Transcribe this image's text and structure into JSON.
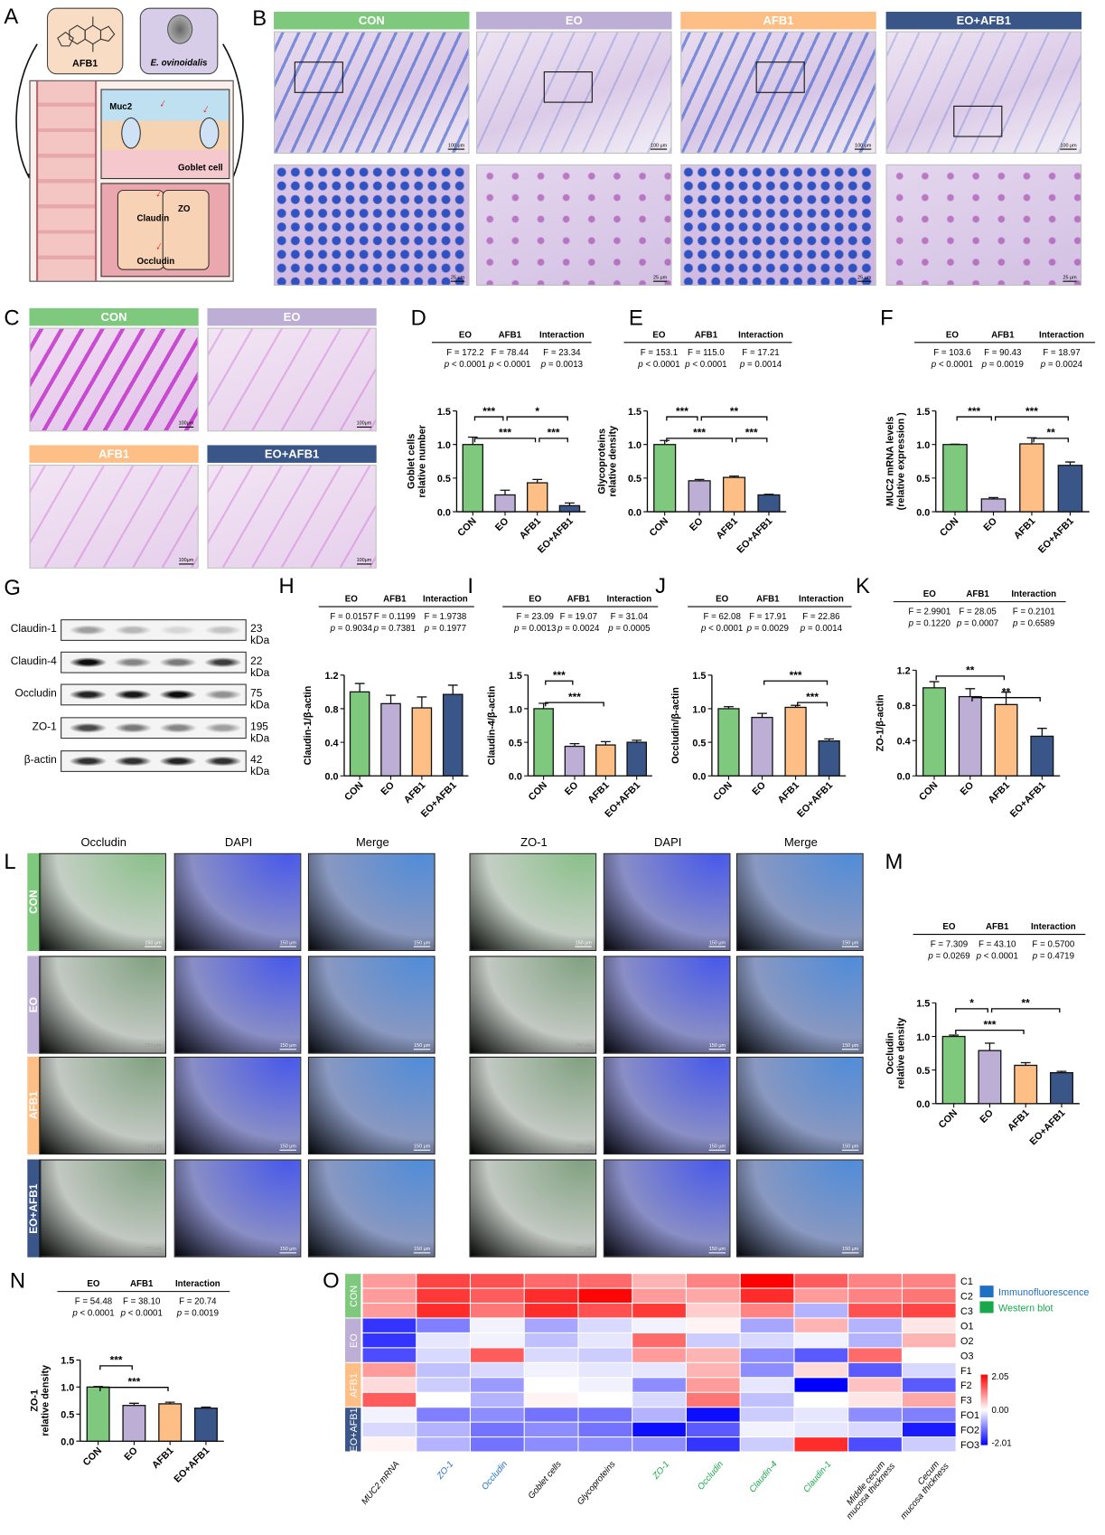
{
  "groups": [
    "CON",
    "EO",
    "AFB1",
    "EO+AFB1"
  ],
  "group_colors": {
    "CON": "#7fc97f",
    "EO": "#bcaed4",
    "AFB1": "#fdbf85",
    "EO+AFB1": "#3a5689"
  },
  "panel_letters": [
    "A",
    "B",
    "C",
    "D",
    "E",
    "F",
    "G",
    "H",
    "I",
    "J",
    "K",
    "L",
    "M",
    "N",
    "O"
  ],
  "panel_a": {
    "agent1": "AFB1",
    "agent2": "E. ovinoidalis",
    "muc2": "Muc2",
    "goblet": "Goblet cell",
    "zo": "ZO",
    "claudin": "Claudin",
    "occludin": "Occludin",
    "arrow_color": "#e8231f"
  },
  "panel_b": {
    "scale_top": "100 μm",
    "scale_bottom": "25 μm"
  },
  "panel_c": {
    "scale": "100μm"
  },
  "panel_g": {
    "proteins": [
      {
        "name": "Claudin-1",
        "kda": "23 kDa"
      },
      {
        "name": "Claudin-4",
        "kda": "22 kDa"
      },
      {
        "name": "Occludin",
        "kda": "75 kDa"
      },
      {
        "name": "ZO-1",
        "kda": "195 kDa"
      },
      {
        "name": "β-actin",
        "kda": "42 kDa"
      }
    ]
  },
  "panel_l": {
    "left_columns": [
      "Occludin",
      "DAPI",
      "Merge"
    ],
    "right_columns": [
      "ZO-1",
      "DAPI",
      "Merge"
    ],
    "scale": "150 μm"
  },
  "chart_data": [
    {
      "id": "D",
      "type": "bar",
      "ylabel": "Goblet cells\nrelative number",
      "categories": [
        "CON",
        "EO",
        "AFB1",
        "EO+AFB1"
      ],
      "values": [
        1.0,
        0.25,
        0.43,
        0.09
      ],
      "errors": [
        0.11,
        0.07,
        0.05,
        0.04
      ],
      "ylim": [
        0,
        1.5
      ],
      "yticks": [
        "0.0",
        "0.5",
        "1.0",
        "1.5"
      ],
      "stats": {
        "headers": [
          "EO",
          "AFB1",
          "Interaction"
        ],
        "F": [
          "F = 172.2",
          "F = 78.44",
          "F = 23.34"
        ],
        "p": [
          "p < 0.0001",
          "p < 0.0001",
          "p = 0.0013"
        ]
      },
      "significance": [
        [
          0,
          1,
          "***"
        ],
        [
          1,
          3,
          "*"
        ],
        [
          0,
          2,
          "***"
        ],
        [
          2,
          3,
          "***"
        ]
      ]
    },
    {
      "id": "E",
      "type": "bar",
      "ylabel": "Glycoproteins\nrelative density",
      "categories": [
        "CON",
        "EO",
        "AFB1",
        "EO+AFB1"
      ],
      "values": [
        1.0,
        0.46,
        0.51,
        0.25
      ],
      "errors": [
        0.06,
        0.02,
        0.02,
        0.01
      ],
      "ylim": [
        0,
        1.5
      ],
      "yticks": [
        "0.0",
        "0.5",
        "1.0",
        "1.5"
      ],
      "stats": {
        "headers": [
          "EO",
          "AFB1",
          "Interaction"
        ],
        "F": [
          "F = 153.1",
          "F = 115.0",
          "F = 17.21"
        ],
        "p": [
          "p < 0.0001",
          "p < 0.0001",
          "p = 0.0014"
        ]
      },
      "significance": [
        [
          0,
          1,
          "***"
        ],
        [
          1,
          3,
          "**"
        ],
        [
          0,
          2,
          "***"
        ],
        [
          2,
          3,
          "***"
        ]
      ]
    },
    {
      "id": "F",
      "type": "bar",
      "ylabel": "MUC2 mRNA  levels\n(relative expression )",
      "categories": [
        "CON",
        "EO",
        "AFB1",
        "EO+AFB1"
      ],
      "values": [
        1.0,
        0.19,
        1.01,
        0.69
      ],
      "errors": [
        0.005,
        0.02,
        0.09,
        0.05
      ],
      "ylim": [
        0,
        1.5
      ],
      "yticks": [
        "0.0",
        "0.5",
        "1.0",
        "1.5"
      ],
      "stats": {
        "headers": [
          "EO",
          "AFB1",
          "Interaction"
        ],
        "F": [
          "F = 103.6",
          "F = 90.43",
          "F = 18.97"
        ],
        "p": [
          "p < 0.0001",
          "p = 0.0019",
          "p = 0.0024"
        ]
      },
      "significance": [
        [
          0,
          1,
          "***"
        ],
        [
          1,
          3,
          "***"
        ],
        [
          2,
          3,
          "**"
        ]
      ]
    },
    {
      "id": "H",
      "type": "bar",
      "ylabel": "Claudin-1/β-actin",
      "categories": [
        "CON",
        "EO",
        "AFB1",
        "EO+AFB1"
      ],
      "values": [
        1.0,
        0.86,
        0.81,
        0.97
      ],
      "errors": [
        0.1,
        0.1,
        0.13,
        0.11
      ],
      "ylim": [
        0,
        1.2
      ],
      "yticks": [
        "0.0",
        "0.4",
        "0.8",
        "1.2"
      ],
      "stats": {
        "headers": [
          "EO",
          "AFB1",
          "Interaction"
        ],
        "F": [
          "F = 0.0157",
          "F = 0.1199",
          "F = 1.9738"
        ],
        "p": [
          "p = 0.9034",
          "p = 0.7381",
          "p = 0.1977"
        ]
      },
      "significance": []
    },
    {
      "id": "I",
      "type": "bar",
      "ylabel": "Claudin-4/β-actin",
      "categories": [
        "CON",
        "EO",
        "AFB1",
        "EO+AFB1"
      ],
      "values": [
        1.0,
        0.44,
        0.46,
        0.5
      ],
      "errors": [
        0.08,
        0.04,
        0.05,
        0.03
      ],
      "ylim": [
        0,
        1.5
      ],
      "yticks": [
        "0.0",
        "0.5",
        "1.0",
        "1.5"
      ],
      "stats": {
        "headers": [
          "EO",
          "AFB1",
          "Interaction"
        ],
        "F": [
          "F = 23.09",
          "F = 19.07",
          "F = 31.04"
        ],
        "p": [
          "p = 0.0013",
          "p = 0.0024",
          "p = 0.0005"
        ]
      },
      "significance": [
        [
          0,
          1,
          "***"
        ],
        [
          0,
          2,
          "***"
        ]
      ]
    },
    {
      "id": "J",
      "type": "bar",
      "ylabel": "Occludin/β-actin",
      "categories": [
        "CON",
        "EO",
        "AFB1",
        "EO+AFB1"
      ],
      "values": [
        1.0,
        0.87,
        1.02,
        0.52
      ],
      "errors": [
        0.03,
        0.06,
        0.03,
        0.03
      ],
      "ylim": [
        0,
        1.5
      ],
      "yticks": [
        "0.0",
        "0.5",
        "1.0",
        "1.5"
      ],
      "stats": {
        "headers": [
          "EO",
          "AFB1",
          "Interaction"
        ],
        "F": [
          "F = 62.08",
          "F = 17.91",
          "F = 22.86"
        ],
        "p": [
          "p < 0.0001",
          "p = 0.0029",
          "p = 0.0014"
        ]
      },
      "significance": [
        [
          1,
          3,
          "***"
        ],
        [
          2,
          3,
          "***"
        ]
      ]
    },
    {
      "id": "K",
      "type": "bar",
      "ylabel": "ZO-1/β-actin",
      "categories": [
        "CON",
        "EO",
        "AFB1",
        "EO+AFB1"
      ],
      "values": [
        1.0,
        0.9,
        0.81,
        0.45
      ],
      "errors": [
        0.07,
        0.09,
        0.14,
        0.09
      ],
      "ylim": [
        0,
        1.2
      ],
      "yticks": [
        "0.0",
        "0.4",
        "0.8",
        "1.2"
      ],
      "stats": {
        "headers": [
          "EO",
          "AFB1",
          "Interaction"
        ],
        "F": [
          "F = 2.9901",
          "F = 28.05",
          "F = 0.2101"
        ],
        "p": [
          "p = 0.1220",
          "p = 0.0007",
          "p = 0.6589"
        ]
      },
      "significance": [
        [
          0,
          2,
          "**"
        ],
        [
          1,
          3,
          "**"
        ]
      ]
    },
    {
      "id": "M",
      "type": "bar",
      "ylabel": "Occludin\nrelative density",
      "categories": [
        "CON",
        "EO",
        "AFB1",
        "EO+AFB1"
      ],
      "values": [
        1.0,
        0.79,
        0.57,
        0.46
      ],
      "errors": [
        0.02,
        0.11,
        0.04,
        0.02
      ],
      "ylim": [
        0,
        1.5
      ],
      "yticks": [
        "0.0",
        "0.5",
        "1.0",
        "1.5"
      ],
      "stats": {
        "headers": [
          "EO",
          "AFB1",
          "Interaction"
        ],
        "F": [
          "F = 7.309",
          "F = 43.10",
          "F = 0.5700"
        ],
        "p": [
          "p = 0.0269",
          "p < 0.0001",
          "p = 0.4719"
        ]
      },
      "significance": [
        [
          0,
          1,
          "*"
        ],
        [
          1,
          3,
          "**"
        ],
        [
          0,
          2,
          "***"
        ]
      ]
    },
    {
      "id": "N",
      "type": "bar",
      "ylabel": "ZO-1\nrelative density",
      "categories": [
        "CON",
        "EO",
        "AFB1",
        "EO+AFB1"
      ],
      "values": [
        1.0,
        0.66,
        0.69,
        0.61
      ],
      "errors": [
        0.01,
        0.04,
        0.03,
        0.02
      ],
      "ylim": [
        0,
        1.5
      ],
      "yticks": [
        "0.0",
        "0.5",
        "1.0",
        "1.5"
      ],
      "stats": {
        "headers": [
          "EO",
          "AFB1",
          "Interaction"
        ],
        "F": [
          "F = 54.48",
          "F = 38.10",
          "F = 20.74"
        ],
        "p": [
          "p < 0.0001",
          "p < 0.0001",
          "p = 0.0019"
        ]
      },
      "significance": [
        [
          0,
          1,
          "***"
        ],
        [
          0,
          2,
          "***"
        ]
      ]
    },
    {
      "id": "O",
      "type": "heatmap",
      "row_groups": [
        {
          "name": "CON",
          "rows": [
            "C1",
            "C2",
            "C3"
          ]
        },
        {
          "name": "EO",
          "rows": [
            "O1",
            "O2",
            "O3"
          ]
        },
        {
          "name": "AFB1",
          "rows": [
            "F1",
            "F2",
            "F3"
          ]
        },
        {
          "name": "EO+AFB1",
          "rows": [
            "FO1",
            "FO2",
            "FO3"
          ]
        }
      ],
      "columns": [
        {
          "label": "MUC2 mRNA",
          "source": "none"
        },
        {
          "label": "ZO-1",
          "source": "Immunofluorescence"
        },
        {
          "label": "Occludin",
          "source": "Immunofluorescence"
        },
        {
          "label": "Goblet cells",
          "source": "none"
        },
        {
          "label": "Glycoproteins",
          "source": "none"
        },
        {
          "label": "ZO-1",
          "source": "Western blot"
        },
        {
          "label": "Occludin",
          "source": "Western blot"
        },
        {
          "label": "Claudin-4",
          "source": "Western blot"
        },
        {
          "label": "Claudin-1",
          "source": "Western blot"
        },
        {
          "label": "Middle cecum\nmucosa thickness",
          "source": "none"
        },
        {
          "label": "Cecum\nmucosa thickness",
          "source": "none"
        }
      ],
      "values": [
        [
          0.8,
          1.5,
          1.4,
          1.2,
          1.2,
          0.6,
          1.0,
          2.05,
          1.3,
          1.0,
          1.0
        ],
        [
          0.8,
          1.6,
          1.3,
          1.7,
          2.0,
          0.8,
          0.7,
          1.7,
          0.8,
          1.0,
          1.1
        ],
        [
          0.8,
          1.7,
          1.1,
          1.7,
          1.4,
          1.6,
          0.4,
          1.0,
          -0.6,
          1.4,
          1.5
        ],
        [
          -1.6,
          -1.0,
          -0.1,
          -0.7,
          -0.3,
          -0.1,
          0.1,
          -0.7,
          0.6,
          -0.6,
          0.2
        ],
        [
          -1.6,
          -0.2,
          -0.1,
          -0.5,
          -0.2,
          1.2,
          -0.4,
          -0.3,
          -0.1,
          -0.6,
          0.6
        ],
        [
          -1.4,
          -0.3,
          1.3,
          -0.3,
          -0.4,
          0.8,
          0.6,
          -0.9,
          -1.3,
          1.2,
          0.0
        ],
        [
          0.8,
          -0.5,
          -0.3,
          -0.1,
          -0.2,
          -0.2,
          0.6,
          -0.9,
          0.3,
          -1.3,
          -0.3
        ],
        [
          0.3,
          -0.4,
          -0.8,
          0.0,
          -0.1,
          -0.9,
          0.8,
          -0.2,
          -2.01,
          0.5,
          -1.3
        ],
        [
          1.3,
          0.0,
          -0.6,
          0.1,
          0.0,
          -0.3,
          1.1,
          -0.5,
          0.0,
          0.2,
          0.7
        ],
        [
          -0.1,
          -1.0,
          -0.9,
          -1.1,
          -1.1,
          -0.6,
          -1.9,
          -0.4,
          -0.2,
          -0.9,
          -1.0
        ],
        [
          -0.3,
          -0.6,
          -1.1,
          -0.9,
          -1.1,
          -1.9,
          -1.3,
          -0.1,
          -0.2,
          -0.3,
          -1.8
        ],
        [
          0.1,
          -0.6,
          -1.1,
          -0.9,
          -0.9,
          -0.9,
          -1.6,
          -0.4,
          1.7,
          -1.4,
          -0.4
        ]
      ],
      "scale": {
        "max": 2.05,
        "mid": 0.0,
        "min": -2.01,
        "labels": [
          "2.05",
          "0.00",
          "-2.01"
        ],
        "colors": [
          "#ff0000",
          "#ffffff",
          "#0000ff"
        ]
      },
      "legend": [
        {
          "label": "Immunofluorescence",
          "color": "#1f6fc5"
        },
        {
          "label": "Western blot",
          "color": "#17a84b"
        }
      ]
    }
  ]
}
